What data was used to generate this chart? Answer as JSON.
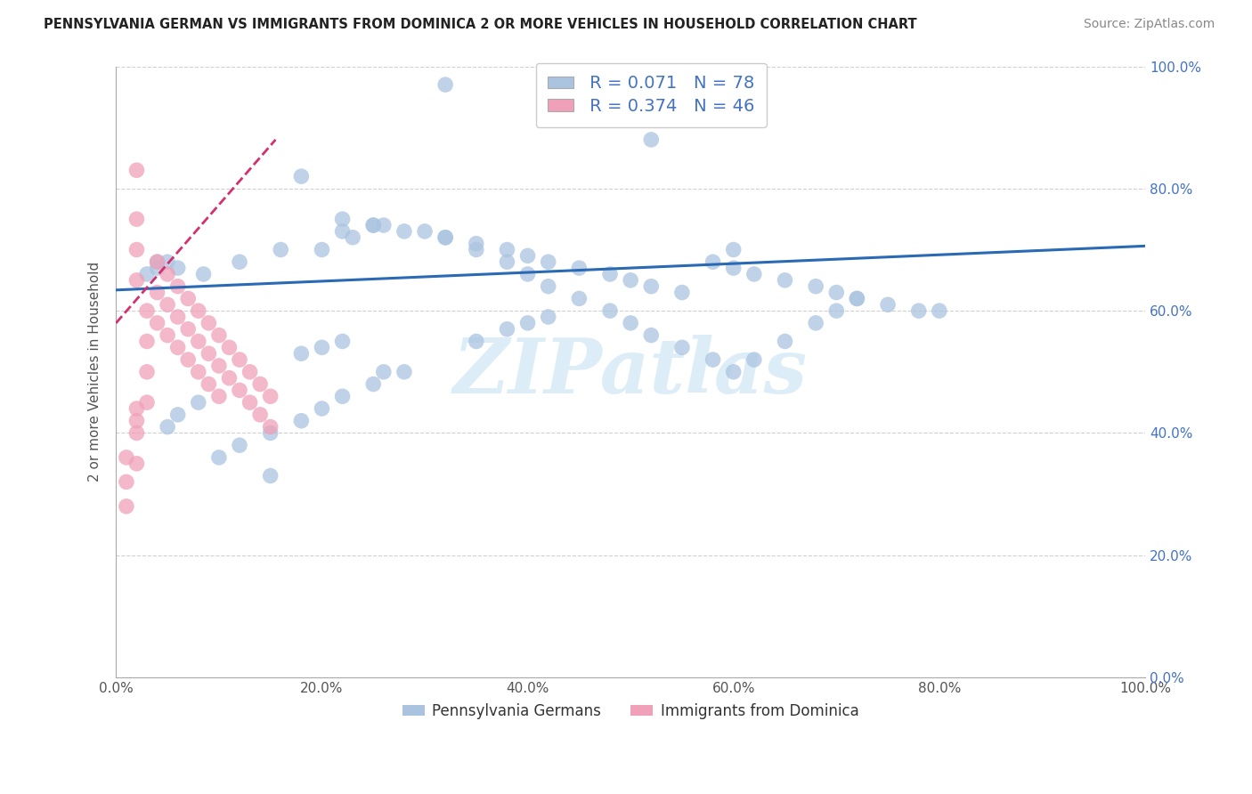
{
  "title": "PENNSYLVANIA GERMAN VS IMMIGRANTS FROM DOMINICA 2 OR MORE VEHICLES IN HOUSEHOLD CORRELATION CHART",
  "source": "Source: ZipAtlas.com",
  "ylabel": "2 or more Vehicles in Household",
  "watermark": "ZIPatlas",
  "blue_R": 0.071,
  "blue_N": 78,
  "pink_R": 0.374,
  "pink_N": 46,
  "blue_color": "#aac4e0",
  "blue_line_color": "#2a6ab5",
  "pink_color": "#f0a0b8",
  "pink_line_color": "#d43070",
  "legend_label_blue": "Pennsylvania Germans",
  "legend_label_pink": "Immigrants from Dominica",
  "xlim": [
    0.0,
    1.0
  ],
  "ylim": [
    0.0,
    1.0
  ],
  "xticks": [
    0.0,
    0.2,
    0.4,
    0.6,
    0.8,
    1.0
  ],
  "yticks": [
    0.0,
    0.2,
    0.4,
    0.6,
    0.8,
    1.0
  ],
  "xtick_labels": [
    "0.0%",
    "20.0%",
    "40.0%",
    "60.0%",
    "80.0%",
    "100.0%"
  ],
  "ytick_labels_right": [
    "0.0%",
    "20.0%",
    "40.0%",
    "60.0%",
    "80.0%",
    "100.0%"
  ],
  "grid_color": "#d0d0d0",
  "background_color": "#ffffff",
  "blue_line_x0": 0.0,
  "blue_line_y0": 0.634,
  "blue_line_x1": 1.0,
  "blue_line_y1": 0.706,
  "pink_line_x0": 0.0,
  "pink_line_y0": 0.58,
  "pink_line_x1": 0.155,
  "pink_line_y1": 0.88,
  "blue_scatter_x": [
    0.32,
    0.18,
    0.085,
    0.06,
    0.05,
    0.04,
    0.04,
    0.03,
    0.22,
    0.16,
    0.12,
    0.26,
    0.2,
    0.23,
    0.25,
    0.28,
    0.32,
    0.35,
    0.38,
    0.4,
    0.42,
    0.45,
    0.48,
    0.5,
    0.52,
    0.55,
    0.58,
    0.6,
    0.62,
    0.65,
    0.68,
    0.7,
    0.72,
    0.35,
    0.38,
    0.4,
    0.42,
    0.28,
    0.25,
    0.22,
    0.2,
    0.18,
    0.15,
    0.12,
    0.1,
    0.08,
    0.06,
    0.05,
    0.8,
    0.22,
    0.25,
    0.3,
    0.32,
    0.35,
    0.38,
    0.4,
    0.42,
    0.45,
    0.48,
    0.5,
    0.52,
    0.55,
    0.18,
    0.2,
    0.22,
    0.58,
    0.6,
    0.62,
    0.65,
    0.68,
    0.7,
    0.72,
    0.75,
    0.78,
    0.52,
    0.6,
    0.26,
    0.15
  ],
  "blue_scatter_y": [
    0.97,
    0.82,
    0.66,
    0.67,
    0.68,
    0.68,
    0.67,
    0.66,
    0.73,
    0.7,
    0.68,
    0.74,
    0.7,
    0.72,
    0.74,
    0.73,
    0.72,
    0.7,
    0.68,
    0.66,
    0.64,
    0.62,
    0.6,
    0.58,
    0.56,
    0.54,
    0.52,
    0.5,
    0.52,
    0.55,
    0.58,
    0.6,
    0.62,
    0.55,
    0.57,
    0.58,
    0.59,
    0.5,
    0.48,
    0.46,
    0.44,
    0.42,
    0.4,
    0.38,
    0.36,
    0.45,
    0.43,
    0.41,
    0.6,
    0.75,
    0.74,
    0.73,
    0.72,
    0.71,
    0.7,
    0.69,
    0.68,
    0.67,
    0.66,
    0.65,
    0.64,
    0.63,
    0.53,
    0.54,
    0.55,
    0.68,
    0.67,
    0.66,
    0.65,
    0.64,
    0.63,
    0.62,
    0.61,
    0.6,
    0.88,
    0.7,
    0.5,
    0.33
  ],
  "pink_scatter_x": [
    0.02,
    0.02,
    0.02,
    0.02,
    0.03,
    0.03,
    0.03,
    0.03,
    0.04,
    0.04,
    0.04,
    0.05,
    0.05,
    0.05,
    0.06,
    0.06,
    0.06,
    0.07,
    0.07,
    0.07,
    0.08,
    0.08,
    0.08,
    0.09,
    0.09,
    0.09,
    0.1,
    0.1,
    0.1,
    0.11,
    0.11,
    0.12,
    0.12,
    0.13,
    0.13,
    0.14,
    0.14,
    0.15,
    0.15,
    0.01,
    0.01,
    0.01,
    0.02,
    0.02,
    0.02,
    0.02
  ],
  "pink_scatter_y": [
    0.83,
    0.75,
    0.7,
    0.65,
    0.6,
    0.55,
    0.5,
    0.45,
    0.68,
    0.63,
    0.58,
    0.66,
    0.61,
    0.56,
    0.64,
    0.59,
    0.54,
    0.62,
    0.57,
    0.52,
    0.6,
    0.55,
    0.5,
    0.58,
    0.53,
    0.48,
    0.56,
    0.51,
    0.46,
    0.54,
    0.49,
    0.52,
    0.47,
    0.5,
    0.45,
    0.48,
    0.43,
    0.46,
    0.41,
    0.36,
    0.32,
    0.28,
    0.35,
    0.4,
    0.42,
    0.44
  ]
}
